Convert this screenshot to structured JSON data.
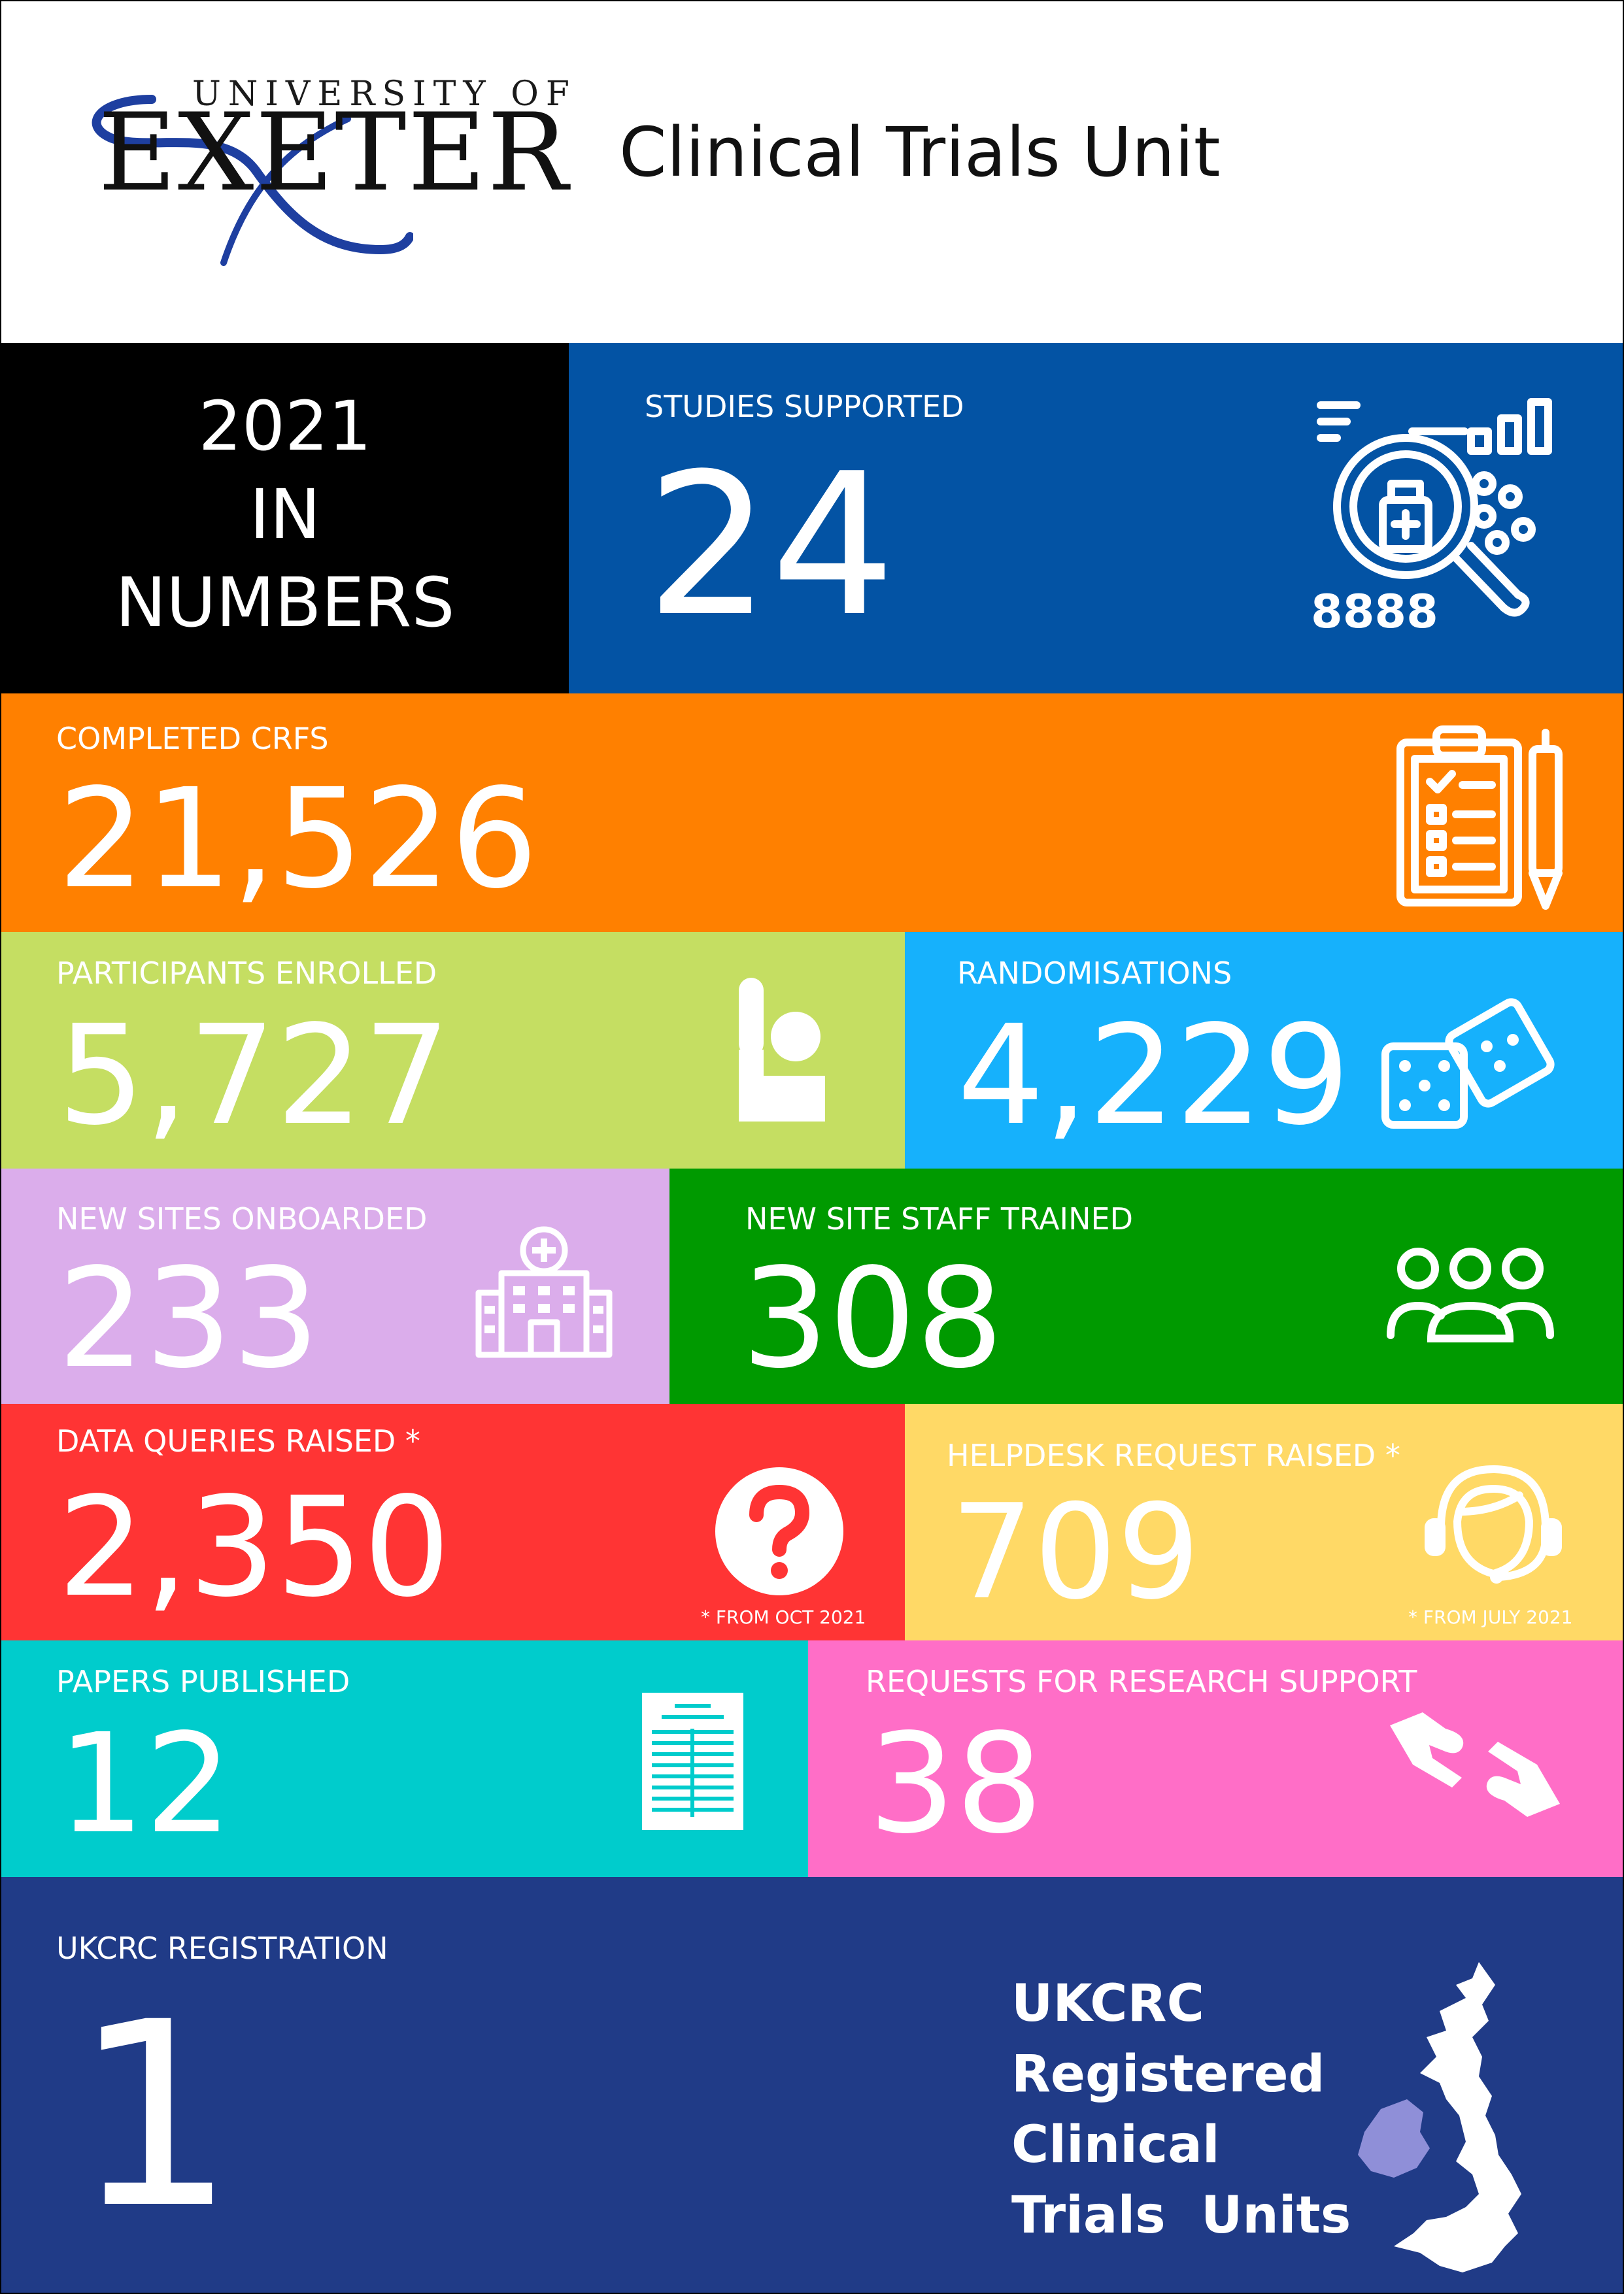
{
  "header": {
    "logo_top": "UNIVERSITY OF",
    "logo_main": "EXETER",
    "unit_title": "Clinical Trials Unit"
  },
  "intro": {
    "line1": "2021",
    "line2": "IN",
    "line3": "NUMBERS"
  },
  "stats": {
    "studies": {
      "label": "STUDIES SUPPORTED",
      "value": "24",
      "icon": "research-magnifier-icon"
    },
    "crfs": {
      "label": "COMPLETED CRFS",
      "value": "21,526",
      "icon": "clipboard-checklist-icon"
    },
    "participants": {
      "label": "PARTICIPANTS ENROLLED",
      "value": "5,727",
      "icon": "raised-hand-person-icon"
    },
    "randomisations": {
      "label": "RANDOMISATIONS",
      "value": "4,229",
      "icon": "dice-icon"
    },
    "sites": {
      "label": "NEW SITES ONBOARDED",
      "value": "233",
      "icon": "hospital-icon"
    },
    "staff": {
      "label": "NEW SITE STAFF TRAINED",
      "value": "308",
      "icon": "group-people-icon"
    },
    "queries": {
      "label": "DATA QUERIES RAISED *",
      "value": "2,350",
      "note": "* FROM OCT 2021",
      "icon": "question-mark-icon"
    },
    "helpdesk": {
      "label": "HELPDESK REQUEST RAISED *",
      "value": "709",
      "note": "* FROM JULY 2021",
      "icon": "headset-agent-icon"
    },
    "papers": {
      "label": "PAPERS PUBLISHED",
      "value": "12",
      "icon": "document-icon"
    },
    "support": {
      "label": "REQUESTS FOR RESEARCH SUPPORT",
      "value": "38",
      "icon": "helping-hands-icon"
    },
    "ukcrc": {
      "label": "UKCRC REGISTRATION",
      "value": "1",
      "icon": "uk-map-icon"
    }
  },
  "ukcrc_badge": {
    "line1": "UKCRC",
    "line2": "Registered",
    "line3": "Clinical",
    "line4": "Trials  Units"
  },
  "colors": {
    "black": "#000000",
    "blue": "#0353A4",
    "orange": "#FF8000",
    "lime": "#C5DE62",
    "sky": "#16B1FC",
    "lilac": "#DBADEB",
    "green": "#009A00",
    "red": "#FF3434",
    "yellow": "#FFD966",
    "teal": "#00CCCC",
    "pink": "#FF6EC7",
    "navy": "#203B87"
  }
}
